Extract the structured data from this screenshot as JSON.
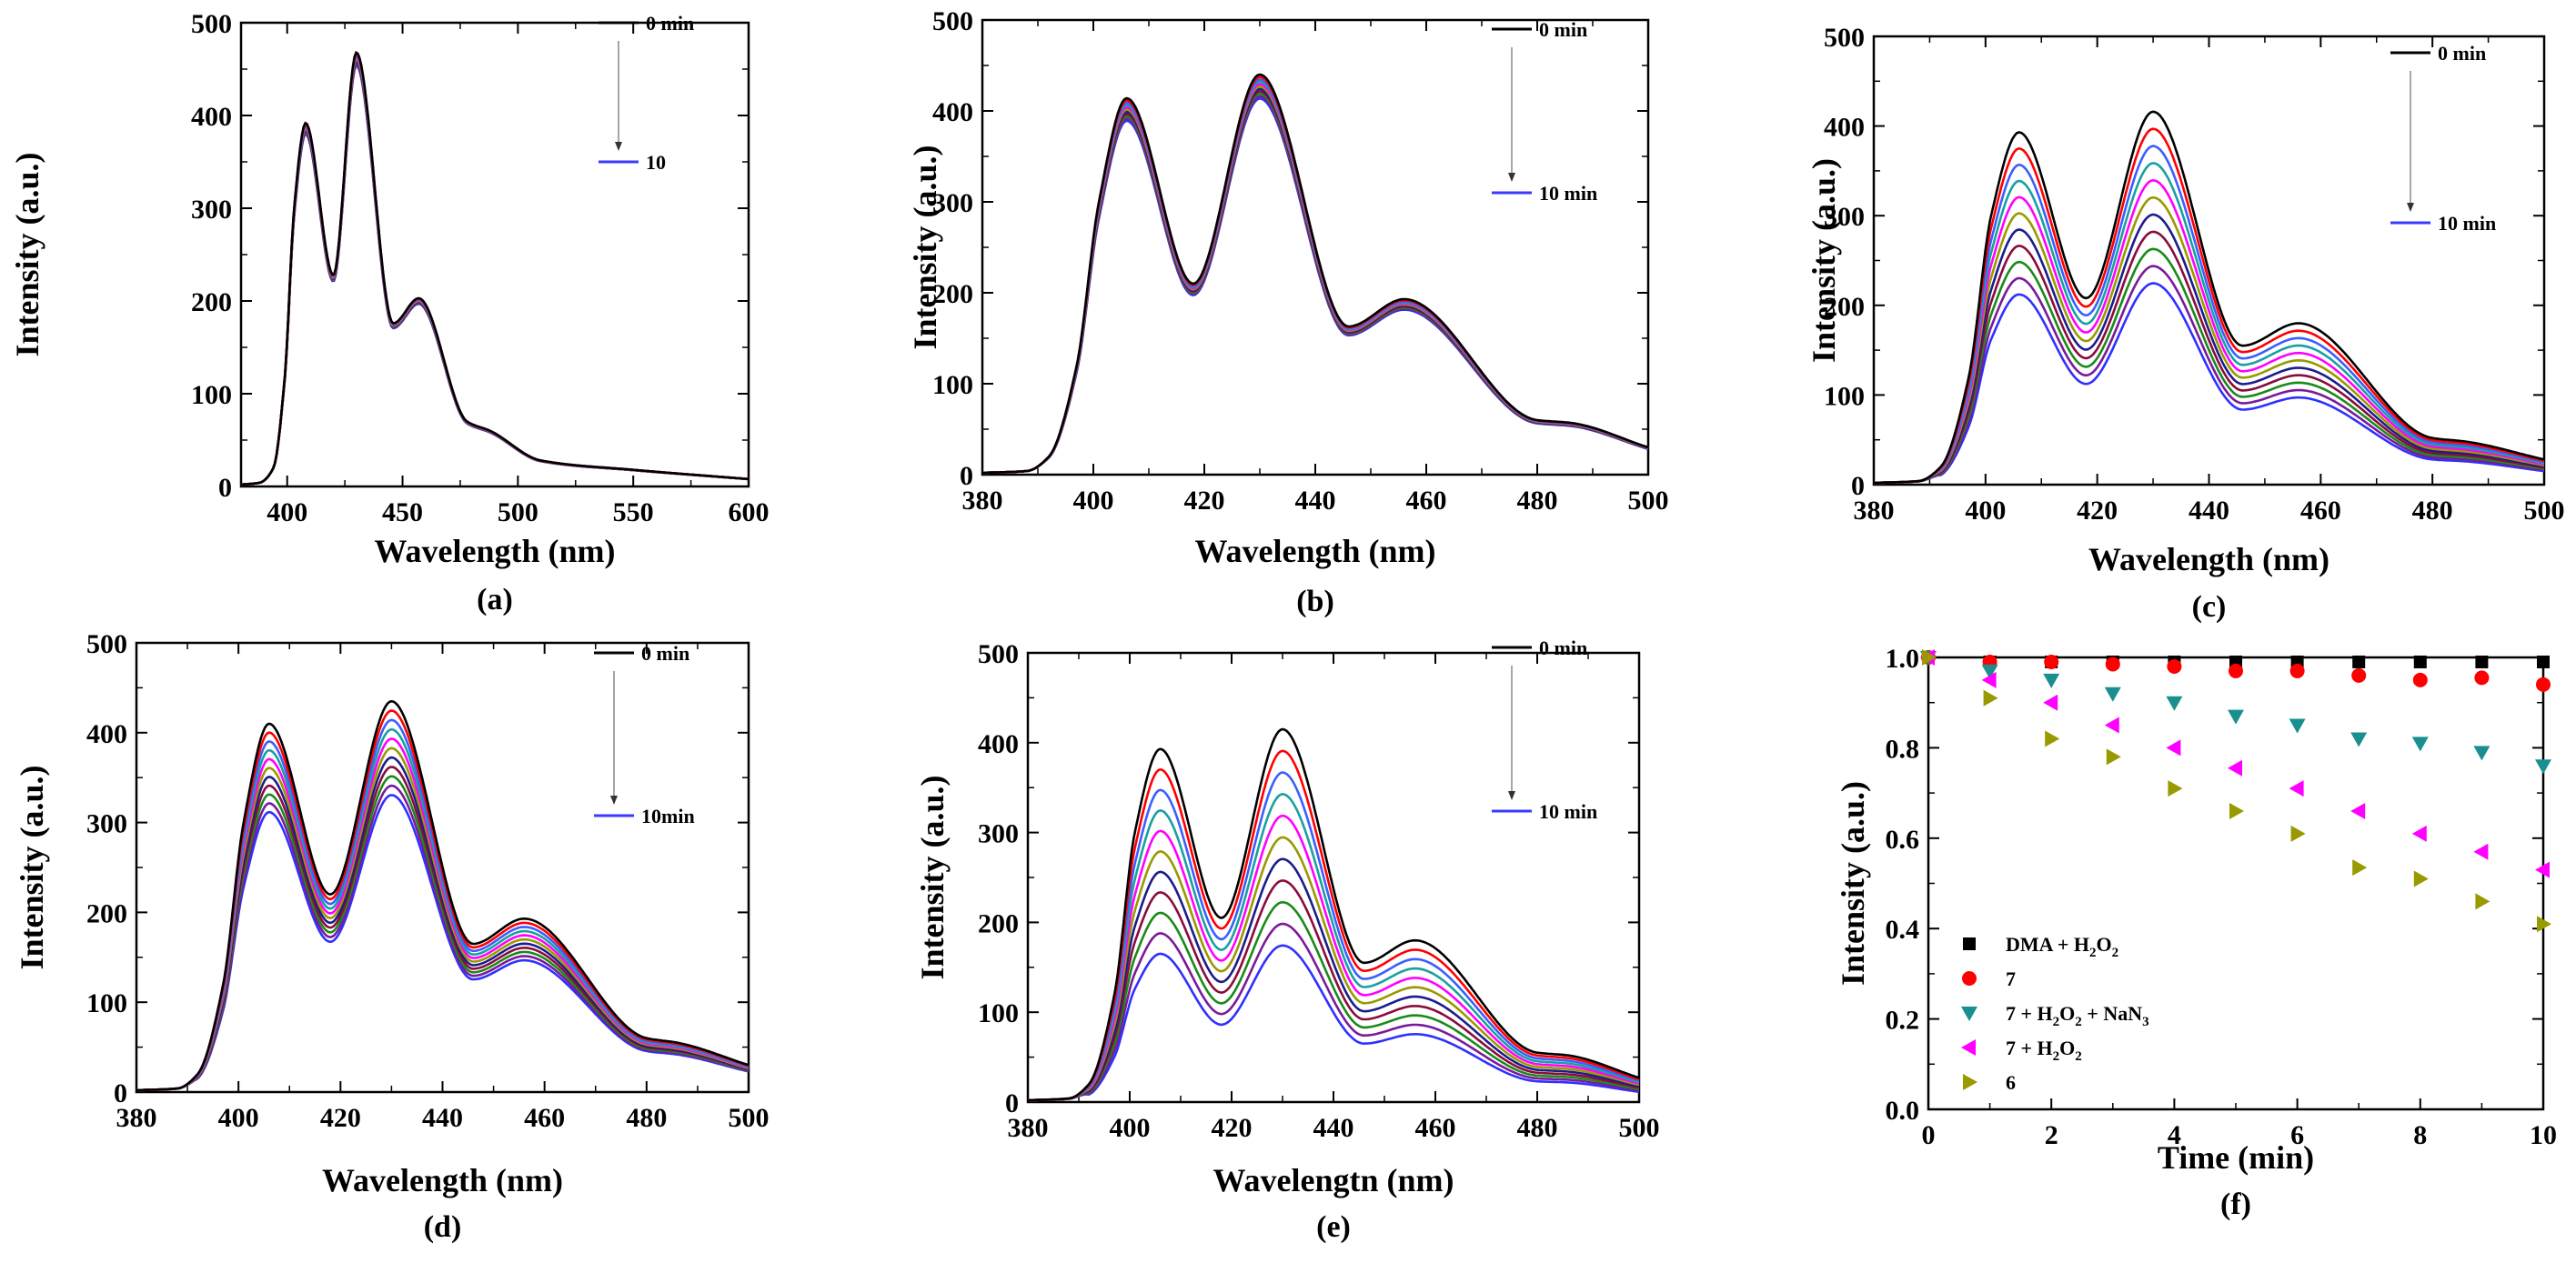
{
  "chart_data": [
    {
      "id": "a",
      "panel_label": "(a)",
      "type": "line",
      "xlabel": "Wavelength (nm)",
      "ylabel": "Intensity (a.u.)",
      "xlim": [
        380,
        600
      ],
      "ylim": [
        0,
        500
      ],
      "xticks": [
        400,
        450,
        500,
        550,
        600
      ],
      "xtick_labels": [
        "400",
        "450",
        "500",
        "550",
        "600"
      ],
      "yticks": [
        0,
        100,
        200,
        300,
        400,
        500
      ],
      "ytick_labels": [
        "0",
        "100",
        "200",
        "300",
        "400",
        "500"
      ],
      "legend": {
        "start": "0 min",
        "end": "10"
      },
      "n_curves": 11,
      "drop_fraction": 0.03,
      "peaks": [
        {
          "x": 408,
          "y": 392
        },
        {
          "x": 430,
          "y": 468
        },
        {
          "x": 457,
          "y": 203
        },
        {
          "x": 488,
          "y": 60
        }
      ],
      "valleys": [
        {
          "x": 420,
          "y": 228
        },
        {
          "x": 446,
          "y": 176
        },
        {
          "x": 478,
          "y": 70
        }
      ],
      "tail": [
        {
          "x": 510,
          "y": 28
        },
        {
          "x": 550,
          "y": 18
        },
        {
          "x": 600,
          "y": 8
        }
      ]
    },
    {
      "id": "b",
      "panel_label": "(b)",
      "type": "line",
      "xlabel": "Wavelength (nm)",
      "ylabel": "Intensity (a.u.)",
      "xlim": [
        380,
        500
      ],
      "ylim": [
        0,
        500
      ],
      "xticks": [
        380,
        400,
        420,
        440,
        460,
        480,
        500
      ],
      "xtick_labels": [
        "380",
        "400",
        "420",
        "440",
        "460",
        "480",
        "500"
      ],
      "yticks": [
        0,
        100,
        200,
        300,
        400,
        500
      ],
      "ytick_labels": [
        "0",
        "100",
        "200",
        "300",
        "400",
        "500"
      ],
      "legend": {
        "start": "0 min",
        "end": "10 min"
      },
      "n_curves": 11,
      "drop_fraction": 0.06,
      "peaks": [
        {
          "x": 406,
          "y": 414
        },
        {
          "x": 430,
          "y": 440
        },
        {
          "x": 456,
          "y": 193
        },
        {
          "x": 486,
          "y": 57
        }
      ],
      "valleys": [
        {
          "x": 418,
          "y": 210
        },
        {
          "x": 446,
          "y": 163
        },
        {
          "x": 480,
          "y": 60
        }
      ],
      "tail": [
        {
          "x": 500,
          "y": 30
        }
      ]
    },
    {
      "id": "c",
      "panel_label": "(c)",
      "type": "line",
      "xlabel": "Wavelength (nm)",
      "ylabel": "Intensity (a.u.)",
      "xlim": [
        380,
        500
      ],
      "ylim": [
        0,
        500
      ],
      "xticks": [
        380,
        400,
        420,
        440,
        460,
        480,
        500
      ],
      "xtick_labels": [
        "380",
        "400",
        "420",
        "440",
        "460",
        "480",
        "500"
      ],
      "yticks": [
        0,
        100,
        200,
        300,
        400,
        500
      ],
      "ytick_labels": [
        "0",
        "100",
        "200",
        "300",
        "400",
        "500"
      ],
      "legend": {
        "start": "0 min",
        "end": "10 min"
      },
      "n_curves": 11,
      "drop_fraction": 0.46,
      "peaks": [
        {
          "x": 406,
          "y": 393
        },
        {
          "x": 430,
          "y": 416
        },
        {
          "x": 456,
          "y": 180
        },
        {
          "x": 486,
          "y": 48
        }
      ],
      "valleys": [
        {
          "x": 418,
          "y": 208
        },
        {
          "x": 446,
          "y": 155
        },
        {
          "x": 480,
          "y": 52
        }
      ],
      "tail": [
        {
          "x": 500,
          "y": 28
        }
      ]
    },
    {
      "id": "d",
      "panel_label": "(d)",
      "type": "line",
      "xlabel": "Wavelength (nm)",
      "ylabel": "Intensity (a.u.)",
      "xlim": [
        380,
        500
      ],
      "ylim": [
        0,
        500
      ],
      "xticks": [
        380,
        400,
        420,
        440,
        460,
        480,
        500
      ],
      "xtick_labels": [
        "380",
        "400",
        "420",
        "440",
        "460",
        "480",
        "500"
      ],
      "yticks": [
        0,
        100,
        200,
        300,
        400,
        500
      ],
      "ytick_labels": [
        "0",
        "100",
        "200",
        "300",
        "400",
        "500"
      ],
      "legend": {
        "start": "0 min",
        "end": "10min"
      },
      "n_curves": 11,
      "drop_fraction": 0.24,
      "peaks": [
        {
          "x": 406,
          "y": 410
        },
        {
          "x": 430,
          "y": 435
        },
        {
          "x": 456,
          "y": 193
        },
        {
          "x": 486,
          "y": 55
        }
      ],
      "valleys": [
        {
          "x": 418,
          "y": 220
        },
        {
          "x": 446,
          "y": 165
        },
        {
          "x": 480,
          "y": 60
        }
      ],
      "tail": [
        {
          "x": 500,
          "y": 30
        }
      ]
    },
    {
      "id": "e",
      "panel_label": "(e)",
      "type": "line",
      "xlabel": "Wavelengtn (nm)",
      "ylabel": "Intensity (a.u.)",
      "xlim": [
        380,
        500
      ],
      "ylim": [
        0,
        500
      ],
      "xticks": [
        380,
        400,
        420,
        440,
        460,
        480,
        500
      ],
      "xtick_labels": [
        "380",
        "400",
        "420",
        "440",
        "460",
        "480",
        "500"
      ],
      "yticks": [
        0,
        100,
        200,
        300,
        400,
        500
      ],
      "ytick_labels": [
        "0",
        "100",
        "200",
        "300",
        "400",
        "500"
      ],
      "legend": {
        "start": "0 min",
        "end": "10 min"
      },
      "n_curves": 11,
      "drop_fraction": 0.58,
      "peaks": [
        {
          "x": 406,
          "y": 393
        },
        {
          "x": 430,
          "y": 415
        },
        {
          "x": 456,
          "y": 180
        },
        {
          "x": 486,
          "y": 52
        }
      ],
      "valleys": [
        {
          "x": 418,
          "y": 205
        },
        {
          "x": 446,
          "y": 155
        },
        {
          "x": 480,
          "y": 55
        }
      ],
      "tail": [
        {
          "x": 500,
          "y": 27
        }
      ]
    },
    {
      "id": "f",
      "panel_label": "(f)",
      "type": "scatter",
      "xlabel": "Time (min)",
      "ylabel": "Intensity (a.u.)",
      "xlim": [
        0,
        10
      ],
      "ylim": [
        0,
        1.0
      ],
      "xticks": [
        0,
        2,
        4,
        6,
        8,
        10
      ],
      "xtick_labels": [
        "0",
        "2",
        "4",
        "6",
        "8",
        "10"
      ],
      "yticks": [
        0,
        0.2,
        0.4,
        0.6,
        0.8,
        1.0
      ],
      "ytick_labels": [
        "0.0",
        "0.2",
        "0.4",
        "0.6",
        "0.8",
        "1.0"
      ],
      "x": [
        0,
        1,
        2,
        3,
        4,
        5,
        6,
        7,
        8,
        9,
        10
      ],
      "series": [
        {
          "name": "DMA + H2O2",
          "label_main": "DMA + H",
          "sub1": "2",
          "mid": "O",
          "sub2": "2",
          "marker": "square",
          "color": "#000000",
          "values": [
            1.0,
            0.99,
            0.99,
            0.99,
            0.99,
            0.99,
            0.99,
            0.99,
            0.99,
            0.99,
            0.99
          ]
        },
        {
          "name": "7",
          "label_main": "7",
          "marker": "circle",
          "color": "#ff0000",
          "values": [
            1.0,
            0.99,
            0.99,
            0.985,
            0.98,
            0.97,
            0.97,
            0.96,
            0.95,
            0.955,
            0.94
          ]
        },
        {
          "name": "7 + H2O2 + NaN3",
          "label_main": "7 + H",
          "sub1": "2",
          "mid": "O",
          "sub2": "2",
          "tail": " + NaN",
          "sub3": "3",
          "marker": "tri-down",
          "color": "#1a8f8f",
          "values": [
            1.0,
            0.97,
            0.95,
            0.92,
            0.9,
            0.87,
            0.85,
            0.82,
            0.81,
            0.79,
            0.76
          ]
        },
        {
          "name": "7 + H2O2",
          "label_main": "7 + H",
          "sub1": "2",
          "mid": "O",
          "sub2": "2",
          "marker": "tri-left",
          "color": "#ff00ff",
          "values": [
            1.0,
            0.95,
            0.9,
            0.85,
            0.8,
            0.755,
            0.71,
            0.66,
            0.61,
            0.57,
            0.53
          ]
        },
        {
          "name": "6",
          "label_main": "6",
          "marker": "tri-right",
          "color": "#999900",
          "values": [
            1.0,
            0.91,
            0.82,
            0.78,
            0.71,
            0.66,
            0.61,
            0.535,
            0.51,
            0.46,
            0.41
          ]
        }
      ]
    }
  ],
  "curve_colors": [
    "#000000",
    "#ff0000",
    "#3a5fff",
    "#19a0a0",
    "#ff00ff",
    "#999900",
    "#1c1c8c",
    "#8a0c3c",
    "#1a8a1a",
    "#7a1a9a",
    "#3030ff"
  ]
}
